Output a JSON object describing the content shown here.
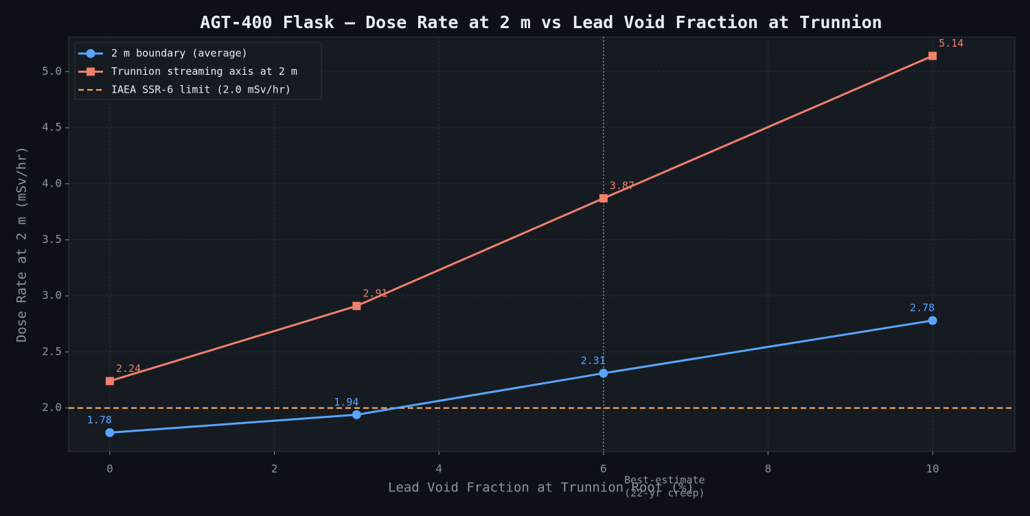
{
  "chart_data": {
    "type": "line",
    "title": "AGT-400 Flask — Dose Rate at 2 m vs Lead Void Fraction at Trunnion",
    "xlabel": "Lead Void Fraction at Trunnion Root (%)",
    "ylabel": "Dose Rate at 2 m (mSv/hr)",
    "x": [
      0,
      3,
      6,
      10
    ],
    "series": [
      {
        "name": "2 m boundary (average)",
        "color": "#58a6ff",
        "marker": "circle",
        "values": [
          1.78,
          1.94,
          2.31,
          2.78
        ]
      },
      {
        "name": "Trunnion streaming axis at 2 m",
        "color": "#f0806a",
        "marker": "square",
        "values": [
          2.24,
          2.91,
          3.87,
          5.14
        ]
      }
    ],
    "hlines": [
      {
        "value": 2.0,
        "name": "IAEA SSR-6 limit (2.0 mSv/hr)",
        "color": "#ffa657"
      }
    ],
    "vlines": [
      {
        "value": 6,
        "annotation": [
          "Best-estimate",
          "(22-yr creep)"
        ],
        "color": "#8b949e"
      }
    ],
    "xlim": [
      -0.5,
      11
    ],
    "ylim": [
      1.612,
      5.308
    ],
    "xticks": [
      0,
      2,
      4,
      6,
      8,
      10
    ],
    "yticks": [
      {
        "value": 2.0,
        "label": "2.0"
      },
      {
        "value": 2.5,
        "label": "2.5"
      },
      {
        "value": 3.0,
        "label": "3.0"
      },
      {
        "value": 3.5,
        "label": "3.5"
      },
      {
        "value": 4.0,
        "label": "4.0"
      },
      {
        "value": 4.5,
        "label": "4.5"
      },
      {
        "value": 5.0,
        "label": "5.0"
      }
    ],
    "grid": true,
    "legend": "upper-left"
  }
}
